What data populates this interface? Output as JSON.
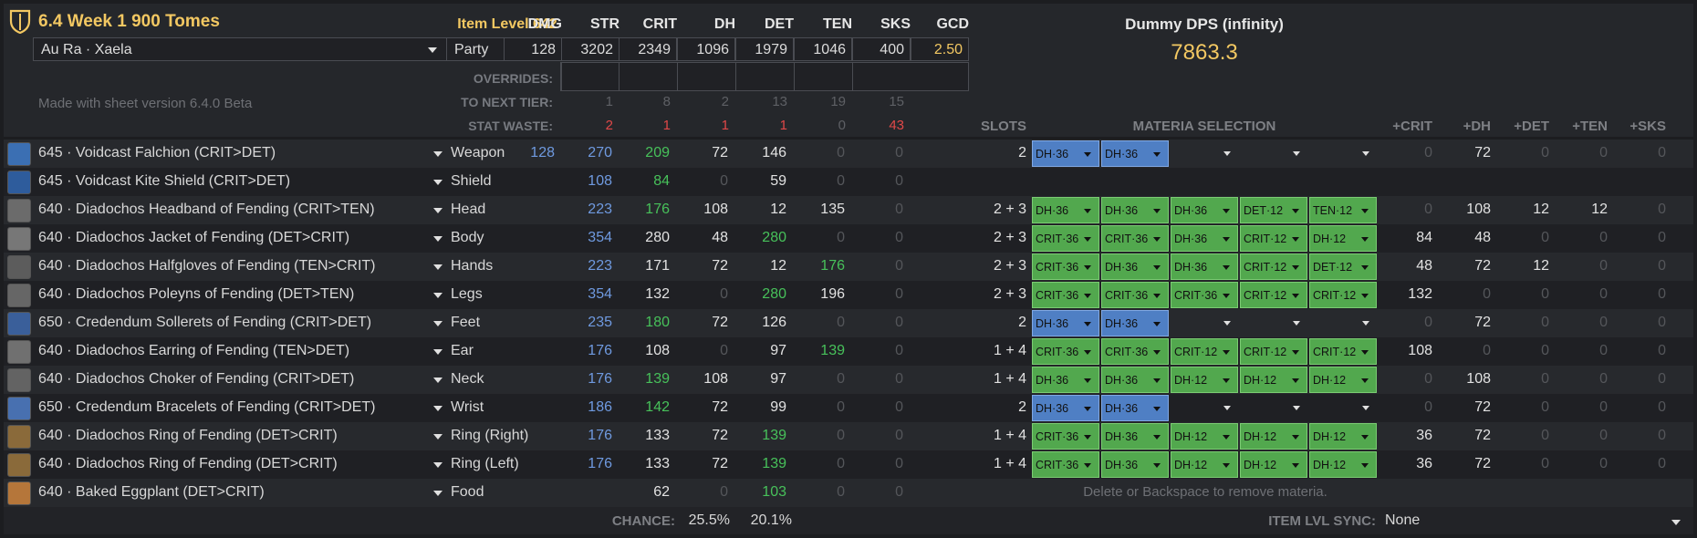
{
  "header": {
    "title": "6.4 Week 1 900 Tomes",
    "race": "Au Ra · Xaela",
    "party": "Party",
    "item_level": "Item Level 642",
    "version": "Made with sheet version 6.4.0 Beta",
    "stat_headers": [
      "DMG",
      "STR",
      "CRIT",
      "DH",
      "DET",
      "TEN",
      "SKS",
      "GCD"
    ],
    "stat_values": [
      "128",
      "3202",
      "2349",
      "1096",
      "1979",
      "1046",
      "400",
      "2.50"
    ],
    "overrides_label": "OVERRIDES:",
    "next_tier_label": "TO NEXT TIER:",
    "next_tier": [
      "1",
      "8",
      "2",
      "13",
      "19",
      "15"
    ],
    "stat_waste_label": "STAT WASTE:",
    "stat_waste": [
      "2",
      "1",
      "1",
      "1",
      "0",
      "43"
    ],
    "dps_label": "Dummy DPS (infinity)",
    "dps_value": "7863.3",
    "slots_label": "SLOTS",
    "materia_label": "MATERIA SELECTION",
    "bonus_headers": [
      "+CRIT",
      "+DH",
      "+DET",
      "+TEN",
      "+SKS"
    ]
  },
  "gear": [
    {
      "name": "645 · Voidcast Falchion (CRIT>DET)",
      "slot": "Weapon",
      "dmg": "128",
      "str": "270",
      "crit": "209",
      "dh": "72",
      "det": "146",
      "ten": "0",
      "sks": "0",
      "slots": "2",
      "materia": [
        [
          "DH·36",
          "b"
        ],
        [
          "DH·36",
          "b"
        ],
        [
          "",
          "e"
        ],
        [
          "",
          "e"
        ],
        [
          "",
          "e"
        ]
      ],
      "bonus": [
        "0",
        "72",
        "0",
        "0",
        "0"
      ],
      "icon": "#3b6fb3"
    },
    {
      "name": "645 · Voidcast Kite Shield (CRIT>DET)",
      "slot": "Shield",
      "dmg": "",
      "str": "108",
      "crit": "84",
      "dh": "0",
      "det": "59",
      "ten": "0",
      "sks": "0",
      "slots": "",
      "materia": [],
      "bonus": [],
      "icon": "#2e5c9c"
    },
    {
      "name": "640 · Diadochos Headband of Fending (CRIT>TEN)",
      "slot": "Head",
      "dmg": "",
      "str": "223",
      "crit": "176",
      "dh": "108",
      "det": "12",
      "ten": "135",
      "sks": "0",
      "slots": "2 + 3",
      "materia": [
        [
          "DH·36",
          "g"
        ],
        [
          "DH·36",
          "g"
        ],
        [
          "DH·36",
          "g"
        ],
        [
          "DET·12",
          "g"
        ],
        [
          "TEN·12",
          "g"
        ]
      ],
      "bonus": [
        "0",
        "108",
        "12",
        "12",
        "0"
      ],
      "icon": "#6b6b6b"
    },
    {
      "name": "640 · Diadochos Jacket of Fending (DET>CRIT)",
      "slot": "Body",
      "dmg": "",
      "str": "354",
      "crit": "280",
      "dh": "48",
      "det": "280",
      "ten": "0",
      "sks": "0",
      "slots": "2 + 3",
      "materia": [
        [
          "CRIT·36",
          "g"
        ],
        [
          "CRIT·36",
          "g"
        ],
        [
          "DH·36",
          "g"
        ],
        [
          "CRIT·12",
          "g"
        ],
        [
          "DH·12",
          "g"
        ]
      ],
      "bonus": [
        "84",
        "48",
        "0",
        "0",
        "0"
      ],
      "icon": "#777777"
    },
    {
      "name": "640 · Diadochos Halfgloves of Fending (TEN>CRIT)",
      "slot": "Hands",
      "dmg": "",
      "str": "223",
      "crit": "171",
      "dh": "72",
      "det": "12",
      "ten": "176",
      "sks": "0",
      "slots": "2 + 3",
      "materia": [
        [
          "CRIT·36",
          "g"
        ],
        [
          "DH·36",
          "g"
        ],
        [
          "DH·36",
          "g"
        ],
        [
          "CRIT·12",
          "g"
        ],
        [
          "DET·12",
          "g"
        ]
      ],
      "bonus": [
        "48",
        "72",
        "12",
        "0",
        "0"
      ],
      "icon": "#5c5c5c"
    },
    {
      "name": "640 · Diadochos Poleyns of Fending (DET>TEN)",
      "slot": "Legs",
      "dmg": "",
      "str": "354",
      "crit": "132",
      "dh": "0",
      "det": "280",
      "ten": "196",
      "sks": "0",
      "slots": "2 + 3",
      "materia": [
        [
          "CRIT·36",
          "g"
        ],
        [
          "CRIT·36",
          "g"
        ],
        [
          "CRIT·36",
          "g"
        ],
        [
          "CRIT·12",
          "g"
        ],
        [
          "CRIT·12",
          "g"
        ]
      ],
      "bonus": [
        "132",
        "0",
        "0",
        "0",
        "0"
      ],
      "icon": "#666666"
    },
    {
      "name": "650 · Credendum Sollerets of Fending (CRIT>DET)",
      "slot": "Feet",
      "dmg": "",
      "str": "235",
      "crit": "180",
      "dh": "72",
      "det": "126",
      "ten": "0",
      "sks": "0",
      "slots": "2",
      "materia": [
        [
          "DH·36",
          "b"
        ],
        [
          "DH·36",
          "b"
        ],
        [
          "",
          "e"
        ],
        [
          "",
          "e"
        ],
        [
          "",
          "e"
        ]
      ],
      "bonus": [
        "0",
        "72",
        "0",
        "0",
        "0"
      ],
      "icon": "#3a5f9a"
    },
    {
      "name": "640 · Diadochos Earring of Fending (TEN>DET)",
      "slot": "Ear",
      "dmg": "",
      "str": "176",
      "crit": "108",
      "dh": "0",
      "det": "97",
      "ten": "139",
      "sks": "0",
      "slots": "1 + 4",
      "materia": [
        [
          "CRIT·36",
          "g"
        ],
        [
          "CRIT·36",
          "g"
        ],
        [
          "CRIT·12",
          "g"
        ],
        [
          "CRIT·12",
          "g"
        ],
        [
          "CRIT·12",
          "g"
        ]
      ],
      "bonus": [
        "108",
        "0",
        "0",
        "0",
        "0"
      ],
      "icon": "#707070"
    },
    {
      "name": "640 · Diadochos Choker of Fending (CRIT>DET)",
      "slot": "Neck",
      "dmg": "",
      "str": "176",
      "crit": "139",
      "dh": "108",
      "det": "97",
      "ten": "0",
      "sks": "0",
      "slots": "1 + 4",
      "materia": [
        [
          "DH·36",
          "g"
        ],
        [
          "DH·36",
          "g"
        ],
        [
          "DH·12",
          "g"
        ],
        [
          "DH·12",
          "g"
        ],
        [
          "DH·12",
          "g"
        ]
      ],
      "bonus": [
        "0",
        "108",
        "0",
        "0",
        "0"
      ],
      "icon": "#636363"
    },
    {
      "name": "650 · Credendum Bracelets of Fending (CRIT>DET)",
      "slot": "Wrist",
      "dmg": "",
      "str": "186",
      "crit": "142",
      "dh": "72",
      "det": "99",
      "ten": "0",
      "sks": "0",
      "slots": "2",
      "materia": [
        [
          "DH·36",
          "b"
        ],
        [
          "DH·36",
          "b"
        ],
        [
          "",
          "e"
        ],
        [
          "",
          "e"
        ],
        [
          "",
          "e"
        ]
      ],
      "bonus": [
        "0",
        "72",
        "0",
        "0",
        "0"
      ],
      "icon": "#4870b0"
    },
    {
      "name": "640 · Diadochos Ring of Fending (DET>CRIT)",
      "slot": "Ring (Right)",
      "dmg": "",
      "str": "176",
      "crit": "133",
      "dh": "72",
      "det": "139",
      "ten": "0",
      "sks": "0",
      "slots": "1 + 4",
      "materia": [
        [
          "CRIT·36",
          "g"
        ],
        [
          "DH·36",
          "g"
        ],
        [
          "DH·12",
          "g"
        ],
        [
          "DH·12",
          "g"
        ],
        [
          "DH·12",
          "g"
        ]
      ],
      "bonus": [
        "36",
        "72",
        "0",
        "0",
        "0"
      ],
      "icon": "#8a6a3a"
    },
    {
      "name": "640 · Diadochos Ring of Fending (DET>CRIT)",
      "slot": "Ring (Left)",
      "dmg": "",
      "str": "176",
      "crit": "133",
      "dh": "72",
      "det": "139",
      "ten": "0",
      "sks": "0",
      "slots": "1 + 4",
      "materia": [
        [
          "CRIT·36",
          "g"
        ],
        [
          "DH·36",
          "g"
        ],
        [
          "DH·12",
          "g"
        ],
        [
          "DH·12",
          "g"
        ],
        [
          "DH·12",
          "g"
        ]
      ],
      "bonus": [
        "36",
        "72",
        "0",
        "0",
        "0"
      ],
      "icon": "#8a6a3a"
    },
    {
      "name": "640 · Baked Eggplant (DET>CRIT)",
      "slot": "Food",
      "dmg": "",
      "str": "",
      "crit": "62",
      "dh": "0",
      "det": "103",
      "ten": "0",
      "sks": "0",
      "slots": "",
      "materia": [],
      "bonus": [],
      "icon": "#b5763a",
      "hint": "Delete or Backspace to remove materia."
    }
  ],
  "footer": {
    "chance_label": "CHANCE:",
    "crit_chance": "25.5%",
    "dh_chance": "20.1%",
    "sync_label": "ITEM LVL SYNC:",
    "sync_value": "None"
  },
  "colors": {
    "materia_green": "#52a84e",
    "materia_blue": "#4f7fc4",
    "title": "#f3c862",
    "str_blue": "#6f9ae0",
    "highlight_green": "#47c15a",
    "waste_red": "#e04848"
  }
}
